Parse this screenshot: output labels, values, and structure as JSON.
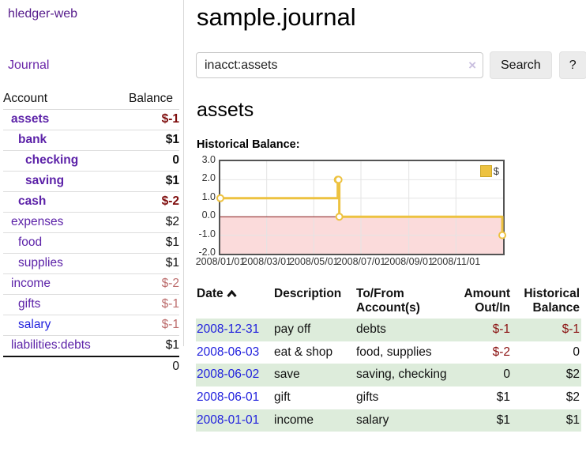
{
  "app": {
    "brand": "hledger-web",
    "nav_journal": "Journal"
  },
  "sidebar": {
    "headers": {
      "account": "Account",
      "balance": "Balance"
    },
    "accounts": [
      {
        "name": "assets",
        "balance": "$-1"
      },
      {
        "name": "bank",
        "balance": "$1"
      },
      {
        "name": "checking",
        "balance": "0"
      },
      {
        "name": "saving",
        "balance": "$1"
      },
      {
        "name": "cash",
        "balance": "$-2"
      },
      {
        "name": "expenses",
        "balance": "$2"
      },
      {
        "name": "food",
        "balance": "$1"
      },
      {
        "name": "supplies",
        "balance": "$1"
      },
      {
        "name": "income",
        "balance": "$-2"
      },
      {
        "name": "gifts",
        "balance": "$-1"
      },
      {
        "name": "salary",
        "balance": "$-1"
      },
      {
        "name": "liabilities:debts",
        "balance": "$1"
      }
    ],
    "total": "0"
  },
  "main": {
    "title": "sample.journal",
    "search": {
      "value": "inacct:assets",
      "clear_icon": "×",
      "search_button": "Search",
      "help_button": "?"
    },
    "heading": "assets",
    "chart_title": "Historical Balance:"
  },
  "chart_data": {
    "type": "line",
    "title": "Historical Balance",
    "step": true,
    "series": [
      {
        "name": "$",
        "x": [
          "2008-01-01",
          "2008-06-01",
          "2008-06-02",
          "2008-06-03",
          "2008-12-31"
        ],
        "y": [
          1,
          2,
          2,
          0,
          -1
        ]
      }
    ],
    "x_range": [
      "2008-01-01",
      "2009-01-01"
    ],
    "xticks": [
      "2008/01/01",
      "2008/03/01",
      "2008/05/01",
      "2008/07/01",
      "2008/09/01",
      "2008/11/01"
    ],
    "yticks": [
      3.0,
      2.0,
      1.0,
      0.0,
      -1.0,
      -2.0
    ],
    "ytick_labels": [
      "3.0",
      "2.0",
      "1.0",
      "0.0",
      "-1.0",
      "-2.0"
    ],
    "ylim": [
      -2,
      3
    ],
    "legend": "$",
    "legend_position": "top-right",
    "grid": true,
    "colors": {
      "line": "#edc240",
      "zero_line": "#8b1a1a",
      "negative_region": "#fbdbdb",
      "grid": "#e4e4e4",
      "border": "#545454"
    }
  },
  "register": {
    "headers": {
      "date": "Date",
      "description": "Description",
      "accounts": "To/From Account(s)",
      "amount": "Amount Out/In",
      "balance": "Historical Balance"
    },
    "rows": [
      {
        "date": "2008-12-31",
        "description": "pay off",
        "accounts": "debts",
        "amount": "$-1",
        "balance": "$-1"
      },
      {
        "date": "2008-06-03",
        "description": "eat & shop",
        "accounts": "food, supplies",
        "amount": "$-2",
        "balance": "0"
      },
      {
        "date": "2008-06-02",
        "description": "save",
        "accounts": "saving, checking",
        "amount": "0",
        "balance": "$2"
      },
      {
        "date": "2008-06-01",
        "description": "gift",
        "accounts": "gifts",
        "amount": "$1",
        "balance": "$2"
      },
      {
        "date": "2008-01-01",
        "description": "income",
        "accounts": "salary",
        "amount": "$1",
        "balance": "$1"
      }
    ]
  }
}
